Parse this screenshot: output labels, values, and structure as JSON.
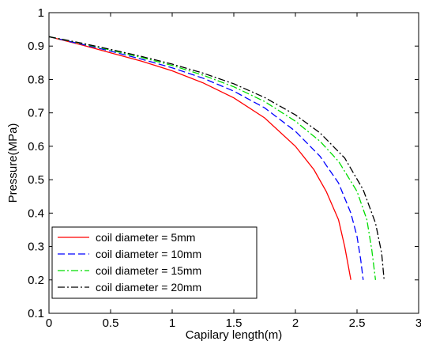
{
  "chart_data": {
    "type": "line",
    "title": "",
    "xlabel": "Capilary length(m)",
    "ylabel": "Pressure(MPa)",
    "xlim": [
      0,
      3
    ],
    "ylim": [
      0.1,
      1
    ],
    "xticks": [
      "0",
      "0.5",
      "1",
      "1.5",
      "2",
      "2.5",
      "3"
    ],
    "yticks": [
      "0.1",
      "0.2",
      "0.3",
      "0.4",
      "0.5",
      "0.6",
      "0.7",
      "0.8",
      "0.9",
      "1"
    ],
    "grid": false,
    "legend_position": "bottom-left",
    "series": [
      {
        "name": "coil diameter = 5mm",
        "color": "#ff0000",
        "dash": "solid",
        "x": [
          0,
          0.25,
          0.5,
          0.75,
          1.0,
          1.25,
          1.5,
          1.75,
          2.0,
          2.15,
          2.25,
          2.35,
          2.4,
          2.43,
          2.45
        ],
        "y": [
          0.928,
          0.905,
          0.88,
          0.855,
          0.826,
          0.79,
          0.745,
          0.685,
          0.6,
          0.53,
          0.465,
          0.38,
          0.3,
          0.24,
          0.2
        ]
      },
      {
        "name": "coil diameter = 10mm",
        "color": "#0000ff",
        "dash": "dashed",
        "x": [
          0,
          0.25,
          0.5,
          0.75,
          1.0,
          1.25,
          1.5,
          1.75,
          2.0,
          2.2,
          2.35,
          2.45,
          2.5,
          2.53,
          2.55
        ],
        "y": [
          0.928,
          0.907,
          0.885,
          0.861,
          0.835,
          0.804,
          0.765,
          0.715,
          0.645,
          0.57,
          0.49,
          0.4,
          0.33,
          0.26,
          0.2
        ]
      },
      {
        "name": "coil diameter = 15mm",
        "color": "#00dd00",
        "dash": "dashdot",
        "x": [
          0,
          0.25,
          0.5,
          0.75,
          1.0,
          1.25,
          1.5,
          1.75,
          2.0,
          2.2,
          2.35,
          2.5,
          2.58,
          2.62,
          2.65
        ],
        "y": [
          0.928,
          0.909,
          0.888,
          0.866,
          0.842,
          0.813,
          0.778,
          0.734,
          0.675,
          0.615,
          0.555,
          0.465,
          0.38,
          0.29,
          0.2
        ]
      },
      {
        "name": "coil diameter = 20mm",
        "color": "#000000",
        "dash": "dashdot",
        "x": [
          0,
          0.25,
          0.5,
          0.75,
          1.0,
          1.25,
          1.5,
          1.75,
          2.0,
          2.2,
          2.4,
          2.55,
          2.65,
          2.7,
          2.72
        ],
        "y": [
          0.928,
          0.91,
          0.89,
          0.869,
          0.846,
          0.819,
          0.787,
          0.746,
          0.694,
          0.64,
          0.565,
          0.47,
          0.37,
          0.28,
          0.2
        ]
      }
    ]
  }
}
